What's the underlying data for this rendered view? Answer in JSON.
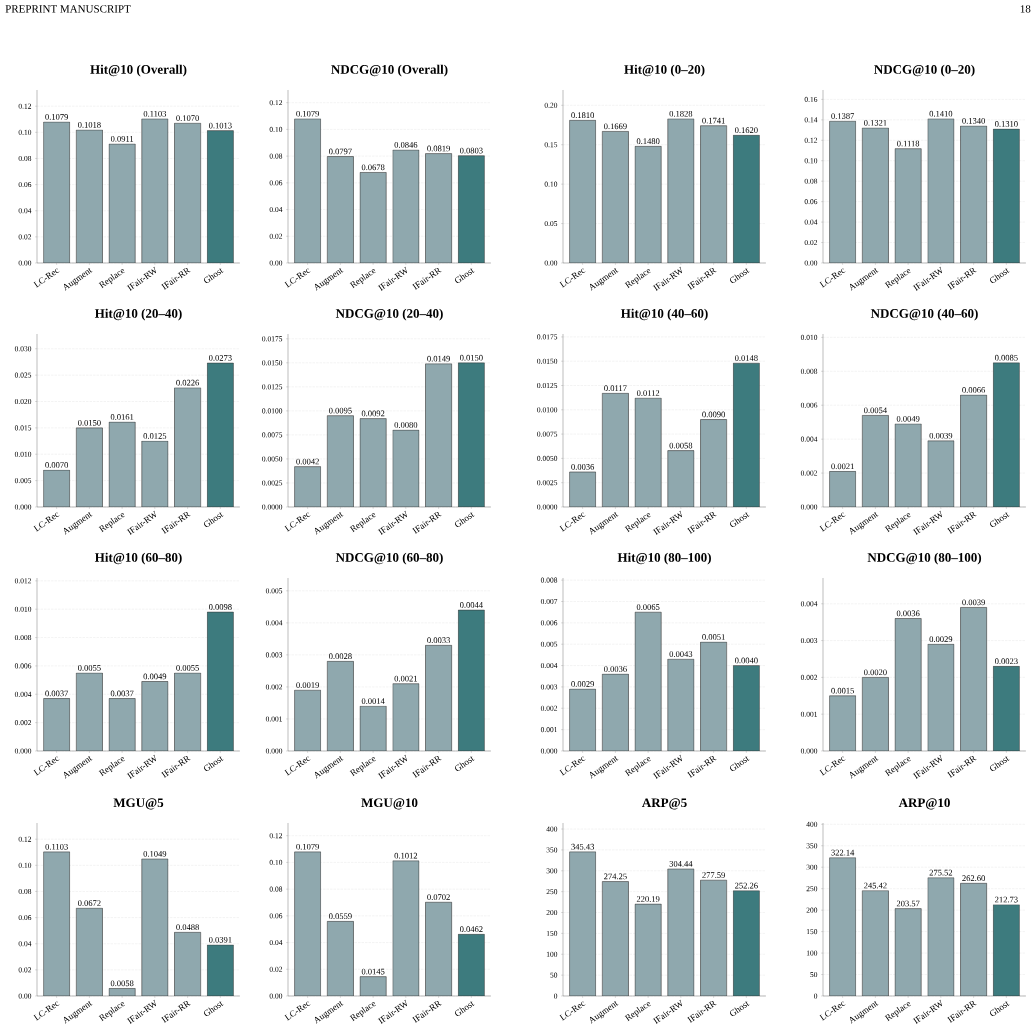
{
  "chart_data": [
    {
      "type": "bar",
      "title": "Hit@10 (Overall)",
      "annotations": [
        "PREPRINT MANUSCRIPT",
        "18"
      ],
      "categories": [
        "LC-Rec",
        "Augment",
        "Replace",
        "IFair-RW",
        "IFair-RR",
        "Ghost"
      ],
      "values": [
        0.1079,
        0.1018,
        0.0911,
        0.1103,
        0.107,
        0.1013
      ],
      "value_labels": [
        "0.1079",
        "0.1018",
        "0.0911",
        "0.1103",
        "0.1070",
        "0.1013"
      ],
      "colors": [
        "#8fa8ae",
        "#8fa8ae",
        "#8fa8ae",
        "#8fa8ae",
        "#8fa8ae",
        "#3d7b7e"
      ],
      "ylim": [
        0,
        0.1324
      ],
      "yticks": [
        {
          "value": 0,
          "label": "0.00"
        },
        {
          "value": 0.02,
          "label": "0.02"
        },
        {
          "value": 0.04,
          "label": "0.04"
        },
        {
          "value": 0.06,
          "label": "0.06"
        },
        {
          "value": 0.08,
          "label": "0.08"
        },
        {
          "value": 0.1,
          "label": "0.10"
        },
        {
          "value": 0.12,
          "label": "0.12"
        }
      ],
      "grid": "y"
    },
    {
      "type": "bar",
      "title": "NDCG@10 (Overall)",
      "categories": [
        "LC-Rec",
        "Augment",
        "Replace",
        "IFair-RW",
        "IFair-RR",
        "Ghost"
      ],
      "values": [
        0.1079,
        0.0797,
        0.0678,
        0.0846,
        0.0819,
        0.0803
      ],
      "value_labels": [
        "0.1079",
        "0.0797",
        "0.0678",
        "0.0846",
        "0.0819",
        "0.0803"
      ],
      "colors": [
        "#8fa8ae",
        "#8fa8ae",
        "#8fa8ae",
        "#8fa8ae",
        "#8fa8ae",
        "#3d7b7e"
      ],
      "ylim": [
        0,
        0.1295
      ],
      "yticks": [
        {
          "value": 0,
          "label": "0.00"
        },
        {
          "value": 0.02,
          "label": "0.02"
        },
        {
          "value": 0.04,
          "label": "0.04"
        },
        {
          "value": 0.06,
          "label": "0.06"
        },
        {
          "value": 0.08,
          "label": "0.08"
        },
        {
          "value": 0.1,
          "label": "0.10"
        },
        {
          "value": 0.12,
          "label": "0.12"
        }
      ],
      "grid": "y"
    },
    {
      "type": "bar",
      "title": "Hit@10 (0–20)",
      "categories": [
        "LC-Rec",
        "Augment",
        "Replace",
        "IFair-RW",
        "IFair-RR",
        "Ghost"
      ],
      "values": [
        0.181,
        0.1669,
        0.148,
        0.1828,
        0.1741,
        0.162
      ],
      "value_labels": [
        "0.1810",
        "0.1669",
        "0.1480",
        "0.1828",
        "0.1741",
        "0.1620"
      ],
      "colors": [
        "#8fa8ae",
        "#8fa8ae",
        "#8fa8ae",
        "#8fa8ae",
        "#8fa8ae",
        "#3d7b7e"
      ],
      "ylim": [
        0,
        0.2194
      ],
      "yticks": [
        {
          "value": 0,
          "label": "0.00"
        },
        {
          "value": 0.05,
          "label": "0.05"
        },
        {
          "value": 0.1,
          "label": "0.10"
        },
        {
          "value": 0.15,
          "label": "0.15"
        },
        {
          "value": 0.2,
          "label": "0.20"
        }
      ],
      "grid": "y"
    },
    {
      "type": "bar",
      "title": "NDCG@10 (0–20)",
      "categories": [
        "LC-Rec",
        "Augment",
        "Replace",
        "IFair-RW",
        "IFair-RR",
        "Ghost"
      ],
      "values": [
        0.1387,
        0.1321,
        0.1118,
        0.141,
        0.134,
        0.131
      ],
      "value_labels": [
        "0.1387",
        "0.1321",
        "0.1118",
        "0.1410",
        "0.1340",
        "0.1310"
      ],
      "colors": [
        "#8fa8ae",
        "#8fa8ae",
        "#8fa8ae",
        "#8fa8ae",
        "#8fa8ae",
        "#3d7b7e"
      ],
      "ylim": [
        0,
        0.1692
      ],
      "yticks": [
        {
          "value": 0,
          "label": "0.00"
        },
        {
          "value": 0.02,
          "label": "0.02"
        },
        {
          "value": 0.04,
          "label": "0.04"
        },
        {
          "value": 0.06,
          "label": "0.06"
        },
        {
          "value": 0.08,
          "label": "0.08"
        },
        {
          "value": 0.1,
          "label": "0.10"
        },
        {
          "value": 0.12,
          "label": "0.12"
        },
        {
          "value": 0.14,
          "label": "0.14"
        },
        {
          "value": 0.16,
          "label": "0.16"
        }
      ],
      "grid": "y"
    },
    {
      "type": "bar",
      "title": "Hit@10 (20–40)",
      "categories": [
        "LC-Rec",
        "Augment",
        "Replace",
        "IFair-RW",
        "IFair-RR",
        "Ghost"
      ],
      "values": [
        0.007,
        0.015,
        0.0161,
        0.0125,
        0.0226,
        0.0273
      ],
      "value_labels": [
        "0.0070",
        "0.0150",
        "0.0161",
        "0.0125",
        "0.0226",
        "0.0273"
      ],
      "colors": [
        "#8fa8ae",
        "#8fa8ae",
        "#8fa8ae",
        "#8fa8ae",
        "#8fa8ae",
        "#3d7b7e"
      ],
      "ylim": [
        0,
        0.0328
      ],
      "yticks": [
        {
          "value": 0,
          "label": "0.000"
        },
        {
          "value": 0.005,
          "label": "0.005"
        },
        {
          "value": 0.01,
          "label": "0.010"
        },
        {
          "value": 0.015,
          "label": "0.015"
        },
        {
          "value": 0.02,
          "label": "0.020"
        },
        {
          "value": 0.025,
          "label": "0.025"
        },
        {
          "value": 0.03,
          "label": "0.030"
        }
      ],
      "grid": "y"
    },
    {
      "type": "bar",
      "title": "NDCG@10 (20–40)",
      "categories": [
        "LC-Rec",
        "Augment",
        "Replace",
        "IFair-RW",
        "IFair-RR",
        "Ghost"
      ],
      "values": [
        0.0042,
        0.0095,
        0.0092,
        0.008,
        0.0149,
        0.015
      ],
      "value_labels": [
        "0.0042",
        "0.0095",
        "0.0092",
        "0.0080",
        "0.0149",
        "0.0150"
      ],
      "colors": [
        "#8fa8ae",
        "#8fa8ae",
        "#8fa8ae",
        "#8fa8ae",
        "#8fa8ae",
        "#3d7b7e"
      ],
      "ylim": [
        0,
        0.018
      ],
      "yticks": [
        {
          "value": 0,
          "label": "0.0000"
        },
        {
          "value": 0.0025,
          "label": "0.0025"
        },
        {
          "value": 0.005,
          "label": "0.0050"
        },
        {
          "value": 0.0075,
          "label": "0.0075"
        },
        {
          "value": 0.01,
          "label": "0.0100"
        },
        {
          "value": 0.0125,
          "label": "0.0125"
        },
        {
          "value": 0.015,
          "label": "0.0150"
        },
        {
          "value": 0.0175,
          "label": "0.0175"
        }
      ],
      "grid": "y"
    },
    {
      "type": "bar",
      "title": "Hit@10 (40–60)",
      "categories": [
        "LC-Rec",
        "Augment",
        "Replace",
        "IFair-RW",
        "IFair-RR",
        "Ghost"
      ],
      "values": [
        0.0036,
        0.0117,
        0.0112,
        0.0058,
        0.009,
        0.0148
      ],
      "value_labels": [
        "0.0036",
        "0.0117",
        "0.0112",
        "0.0058",
        "0.0090",
        "0.0148"
      ],
      "colors": [
        "#8fa8ae",
        "#8fa8ae",
        "#8fa8ae",
        "#8fa8ae",
        "#8fa8ae",
        "#3d7b7e"
      ],
      "ylim": [
        0,
        0.0178
      ],
      "yticks": [
        {
          "value": 0,
          "label": "0.0000"
        },
        {
          "value": 0.0025,
          "label": "0.0025"
        },
        {
          "value": 0.005,
          "label": "0.0050"
        },
        {
          "value": 0.0075,
          "label": "0.0075"
        },
        {
          "value": 0.01,
          "label": "0.0100"
        },
        {
          "value": 0.0125,
          "label": "0.0125"
        },
        {
          "value": 0.015,
          "label": "0.0150"
        },
        {
          "value": 0.0175,
          "label": "0.0175"
        }
      ],
      "grid": "y"
    },
    {
      "type": "bar",
      "title": "NDCG@10 (40–60)",
      "categories": [
        "LC-Rec",
        "Augment",
        "Replace",
        "IFair-RW",
        "IFair-RR",
        "Ghost"
      ],
      "values": [
        0.0021,
        0.0054,
        0.0049,
        0.0039,
        0.0066,
        0.0085
      ],
      "value_labels": [
        "0.0021",
        "0.0054",
        "0.0049",
        "0.0039",
        "0.0066",
        "0.0085"
      ],
      "colors": [
        "#8fa8ae",
        "#8fa8ae",
        "#8fa8ae",
        "#8fa8ae",
        "#8fa8ae",
        "#3d7b7e"
      ],
      "ylim": [
        0,
        0.0102
      ],
      "yticks": [
        {
          "value": 0,
          "label": "0.000"
        },
        {
          "value": 0.002,
          "label": "0.002"
        },
        {
          "value": 0.004,
          "label": "0.004"
        },
        {
          "value": 0.006,
          "label": "0.006"
        },
        {
          "value": 0.008,
          "label": "0.008"
        },
        {
          "value": 0.01,
          "label": "0.010"
        }
      ],
      "grid": "y"
    },
    {
      "type": "bar",
      "title": "Hit@10 (60–80)",
      "categories": [
        "LC-Rec",
        "Augment",
        "Replace",
        "IFair-RW",
        "IFair-RR",
        "Ghost"
      ],
      "values": [
        0.0037,
        0.0055,
        0.0037,
        0.0049,
        0.0055,
        0.0098
      ],
      "value_labels": [
        "0.0037",
        "0.0055",
        "0.0037",
        "0.0049",
        "0.0055",
        "0.0098"
      ],
      "colors": [
        "#8fa8ae",
        "#8fa8ae",
        "#8fa8ae",
        "#8fa8ae",
        "#8fa8ae",
        "#3d7b7e"
      ],
      "ylim": [
        0,
        0.0122
      ],
      "yticks": [
        {
          "value": 0,
          "label": "0.000"
        },
        {
          "value": 0.002,
          "label": "0.002"
        },
        {
          "value": 0.004,
          "label": "0.004"
        },
        {
          "value": 0.006,
          "label": "0.006"
        },
        {
          "value": 0.008,
          "label": "0.008"
        },
        {
          "value": 0.01,
          "label": "0.010"
        },
        {
          "value": 0.012,
          "label": "0.012"
        }
      ],
      "grid": "y"
    },
    {
      "type": "bar",
      "title": "NDCG@10 (60–80)",
      "categories": [
        "LC-Rec",
        "Augment",
        "Replace",
        "IFair-RW",
        "IFair-RR",
        "Ghost"
      ],
      "values": [
        0.0019,
        0.0028,
        0.0014,
        0.0021,
        0.0033,
        0.0044
      ],
      "value_labels": [
        "0.0019",
        "0.0028",
        "0.0014",
        "0.0021",
        "0.0033",
        "0.0044"
      ],
      "colors": [
        "#8fa8ae",
        "#8fa8ae",
        "#8fa8ae",
        "#8fa8ae",
        "#8fa8ae",
        "#3d7b7e"
      ],
      "ylim": [
        0,
        0.0054
      ],
      "yticks": [
        {
          "value": 0,
          "label": "0.000"
        },
        {
          "value": 0.001,
          "label": "0.001"
        },
        {
          "value": 0.002,
          "label": "0.002"
        },
        {
          "value": 0.003,
          "label": "0.003"
        },
        {
          "value": 0.004,
          "label": "0.004"
        },
        {
          "value": 0.005,
          "label": "0.005"
        }
      ],
      "grid": "y"
    },
    {
      "type": "bar",
      "title": "Hit@10 (80–100)",
      "categories": [
        "LC-Rec",
        "Augment",
        "Replace",
        "IFair-RW",
        "IFair-RR",
        "Ghost"
      ],
      "values": [
        0.0029,
        0.0036,
        0.0065,
        0.0043,
        0.0051,
        0.004
      ],
      "value_labels": [
        "0.0029",
        "0.0036",
        "0.0065",
        "0.0043",
        "0.0051",
        "0.0040"
      ],
      "colors": [
        "#8fa8ae",
        "#8fa8ae",
        "#8fa8ae",
        "#8fa8ae",
        "#8fa8ae",
        "#3d7b7e"
      ],
      "ylim": [
        0,
        0.0081
      ],
      "yticks": [
        {
          "value": 0,
          "label": "0.000"
        },
        {
          "value": 0.001,
          "label": "0.001"
        },
        {
          "value": 0.002,
          "label": "0.002"
        },
        {
          "value": 0.003,
          "label": "0.003"
        },
        {
          "value": 0.004,
          "label": "0.004"
        },
        {
          "value": 0.005,
          "label": "0.005"
        },
        {
          "value": 0.006,
          "label": "0.006"
        },
        {
          "value": 0.007,
          "label": "0.007"
        },
        {
          "value": 0.008,
          "label": "0.008"
        }
      ],
      "grid": "y"
    },
    {
      "type": "bar",
      "title": "NDCG@10 (80–100)",
      "categories": [
        "LC-Rec",
        "Augment",
        "Replace",
        "IFair-RW",
        "IFair-RR",
        "Ghost"
      ],
      "values": [
        0.0015,
        0.002,
        0.0036,
        0.0029,
        0.0039,
        0.0023
      ],
      "value_labels": [
        "0.0015",
        "0.0020",
        "0.0036",
        "0.0029",
        "0.0039",
        "0.0023"
      ],
      "colors": [
        "#8fa8ae",
        "#8fa8ae",
        "#8fa8ae",
        "#8fa8ae",
        "#8fa8ae",
        "#3d7b7e"
      ],
      "ylim": [
        0,
        0.0047
      ],
      "yticks": [
        {
          "value": 0,
          "label": "0.000"
        },
        {
          "value": 0.001,
          "label": "0.001"
        },
        {
          "value": 0.002,
          "label": "0.002"
        },
        {
          "value": 0.003,
          "label": "0.003"
        },
        {
          "value": 0.004,
          "label": "0.004"
        }
      ],
      "grid": "y"
    },
    {
      "type": "bar",
      "title": "MGU@5",
      "categories": [
        "LC-Rec",
        "Augment",
        "Replace",
        "IFair-RW",
        "IFair-RR",
        "Ghost"
      ],
      "values": [
        0.1103,
        0.0672,
        0.0058,
        0.1049,
        0.0488,
        0.0391
      ],
      "value_labels": [
        "0.1103",
        "0.0672",
        "0.0058",
        "0.1049",
        "0.0488",
        "0.0391"
      ],
      "colors": [
        "#8fa8ae",
        "#8fa8ae",
        "#8fa8ae",
        "#8fa8ae",
        "#8fa8ae",
        "#3d7b7e"
      ],
      "ylim": [
        0,
        0.1324
      ],
      "yticks": [
        {
          "value": 0,
          "label": "0.00"
        },
        {
          "value": 0.02,
          "label": "0.02"
        },
        {
          "value": 0.04,
          "label": "0.04"
        },
        {
          "value": 0.06,
          "label": "0.06"
        },
        {
          "value": 0.08,
          "label": "0.08"
        },
        {
          "value": 0.1,
          "label": "0.10"
        },
        {
          "value": 0.12,
          "label": "0.12"
        }
      ],
      "grid": "y"
    },
    {
      "type": "bar",
      "title": "MGU@10",
      "categories": [
        "LC-Rec",
        "Augment",
        "Replace",
        "IFair-RW",
        "IFair-RR",
        "Ghost"
      ],
      "values": [
        0.1079,
        0.0559,
        0.0145,
        0.1012,
        0.0702,
        0.0462
      ],
      "value_labels": [
        "0.1079",
        "0.0559",
        "0.0145",
        "0.1012",
        "0.0702",
        "0.0462"
      ],
      "colors": [
        "#8fa8ae",
        "#8fa8ae",
        "#8fa8ae",
        "#8fa8ae",
        "#8fa8ae",
        "#3d7b7e"
      ],
      "ylim": [
        0,
        0.1295
      ],
      "yticks": [
        {
          "value": 0,
          "label": "0.00"
        },
        {
          "value": 0.02,
          "label": "0.02"
        },
        {
          "value": 0.04,
          "label": "0.04"
        },
        {
          "value": 0.06,
          "label": "0.06"
        },
        {
          "value": 0.08,
          "label": "0.08"
        },
        {
          "value": 0.1,
          "label": "0.10"
        },
        {
          "value": 0.12,
          "label": "0.12"
        }
      ],
      "grid": "y"
    },
    {
      "type": "bar",
      "title": "ARP@5",
      "categories": [
        "LC-Rec",
        "Augment",
        "Replace",
        "IFair-RW",
        "IFair-RR",
        "Ghost"
      ],
      "values": [
        345.43,
        274.25,
        220.19,
        304.44,
        277.59,
        252.26
      ],
      "value_labels": [
        "345.43",
        "274.25",
        "220.19",
        "304.44",
        "277.59",
        "252.26"
      ],
      "colors": [
        "#8fa8ae",
        "#8fa8ae",
        "#8fa8ae",
        "#8fa8ae",
        "#8fa8ae",
        "#3d7b7e"
      ],
      "ylim": [
        0,
        414.5
      ],
      "yticks": [
        0,
        50,
        100,
        150,
        200,
        250,
        300,
        350,
        400
      ],
      "grid": "y"
    },
    {
      "type": "bar",
      "title": "ARP@10",
      "categories": [
        "LC-Rec",
        "Augment",
        "Replace",
        "IFair-RW",
        "IFair-RR",
        "Ghost"
      ],
      "values": [
        322.14,
        245.42,
        203.57,
        275.52,
        262.6,
        212.73
      ],
      "value_labels": [
        "322.14",
        "245.42",
        "203.57",
        "275.52",
        "262.60",
        "212.73"
      ],
      "colors": [
        "#8fa8ae",
        "#8fa8ae",
        "#8fa8ae",
        "#8fa8ae",
        "#8fa8ae",
        "#3d7b7e"
      ],
      "ylim": [
        0,
        403
      ],
      "yticks": [
        0,
        50,
        100,
        150,
        200,
        250,
        300,
        350,
        400
      ],
      "grid": "y"
    }
  ]
}
